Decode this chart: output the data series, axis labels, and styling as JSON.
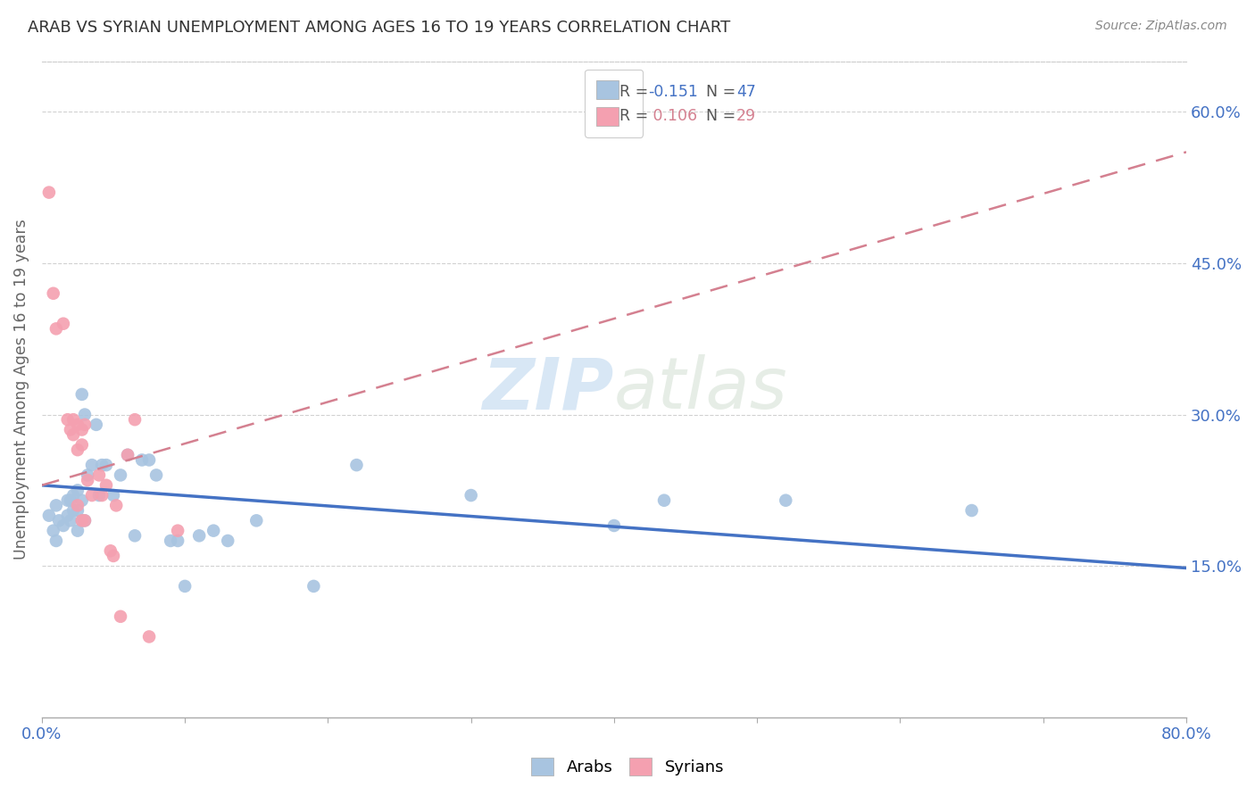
{
  "title": "ARAB VS SYRIAN UNEMPLOYMENT AMONG AGES 16 TO 19 YEARS CORRELATION CHART",
  "source": "Source: ZipAtlas.com",
  "ylabel": "Unemployment Among Ages 16 to 19 years",
  "xlim": [
    0.0,
    0.8
  ],
  "ylim": [
    0.0,
    0.65
  ],
  "ytick_positions": [
    0.15,
    0.3,
    0.45,
    0.6
  ],
  "ytick_labels": [
    "15.0%",
    "30.0%",
    "45.0%",
    "60.0%"
  ],
  "arab_color": "#a8c4e0",
  "syrian_color": "#f4a0b0",
  "arab_line_color": "#4472c4",
  "syrian_line_color": "#d48090",
  "watermark_zip": "ZIP",
  "watermark_atlas": "atlas",
  "arab_points_x": [
    0.005,
    0.008,
    0.01,
    0.01,
    0.012,
    0.015,
    0.018,
    0.018,
    0.02,
    0.02,
    0.022,
    0.022,
    0.025,
    0.025,
    0.025,
    0.028,
    0.028,
    0.028,
    0.03,
    0.03,
    0.032,
    0.035,
    0.038,
    0.04,
    0.042,
    0.045,
    0.05,
    0.055,
    0.06,
    0.065,
    0.07,
    0.075,
    0.08,
    0.09,
    0.095,
    0.1,
    0.11,
    0.12,
    0.13,
    0.15,
    0.19,
    0.22,
    0.3,
    0.4,
    0.435,
    0.52,
    0.65
  ],
  "arab_points_y": [
    0.2,
    0.185,
    0.175,
    0.21,
    0.195,
    0.19,
    0.2,
    0.215,
    0.195,
    0.215,
    0.205,
    0.22,
    0.185,
    0.205,
    0.225,
    0.195,
    0.215,
    0.32,
    0.195,
    0.3,
    0.24,
    0.25,
    0.29,
    0.22,
    0.25,
    0.25,
    0.22,
    0.24,
    0.26,
    0.18,
    0.255,
    0.255,
    0.24,
    0.175,
    0.175,
    0.13,
    0.18,
    0.185,
    0.175,
    0.195,
    0.13,
    0.25,
    0.22,
    0.19,
    0.215,
    0.215,
    0.205
  ],
  "syrian_points_x": [
    0.005,
    0.008,
    0.01,
    0.015,
    0.018,
    0.02,
    0.022,
    0.022,
    0.025,
    0.025,
    0.025,
    0.028,
    0.028,
    0.028,
    0.03,
    0.03,
    0.032,
    0.035,
    0.04,
    0.042,
    0.045,
    0.048,
    0.05,
    0.052,
    0.055,
    0.06,
    0.065,
    0.075,
    0.095
  ],
  "syrian_points_y": [
    0.52,
    0.42,
    0.385,
    0.39,
    0.295,
    0.285,
    0.295,
    0.28,
    0.29,
    0.265,
    0.21,
    0.285,
    0.27,
    0.195,
    0.29,
    0.195,
    0.235,
    0.22,
    0.24,
    0.22,
    0.23,
    0.165,
    0.16,
    0.21,
    0.1,
    0.26,
    0.295,
    0.08,
    0.185
  ],
  "arab_trend_x": [
    0.0,
    0.8
  ],
  "arab_trend_y": [
    0.23,
    0.148
  ],
  "syrian_trend_x": [
    0.0,
    0.8
  ],
  "syrian_trend_y": [
    0.23,
    0.56
  ],
  "background_color": "#ffffff",
  "grid_color": "#cccccc",
  "title_color": "#333333",
  "axis_label_color": "#666666",
  "tick_label_color": "#4472c4",
  "figsize": [
    14.06,
    8.92
  ],
  "dpi": 100
}
